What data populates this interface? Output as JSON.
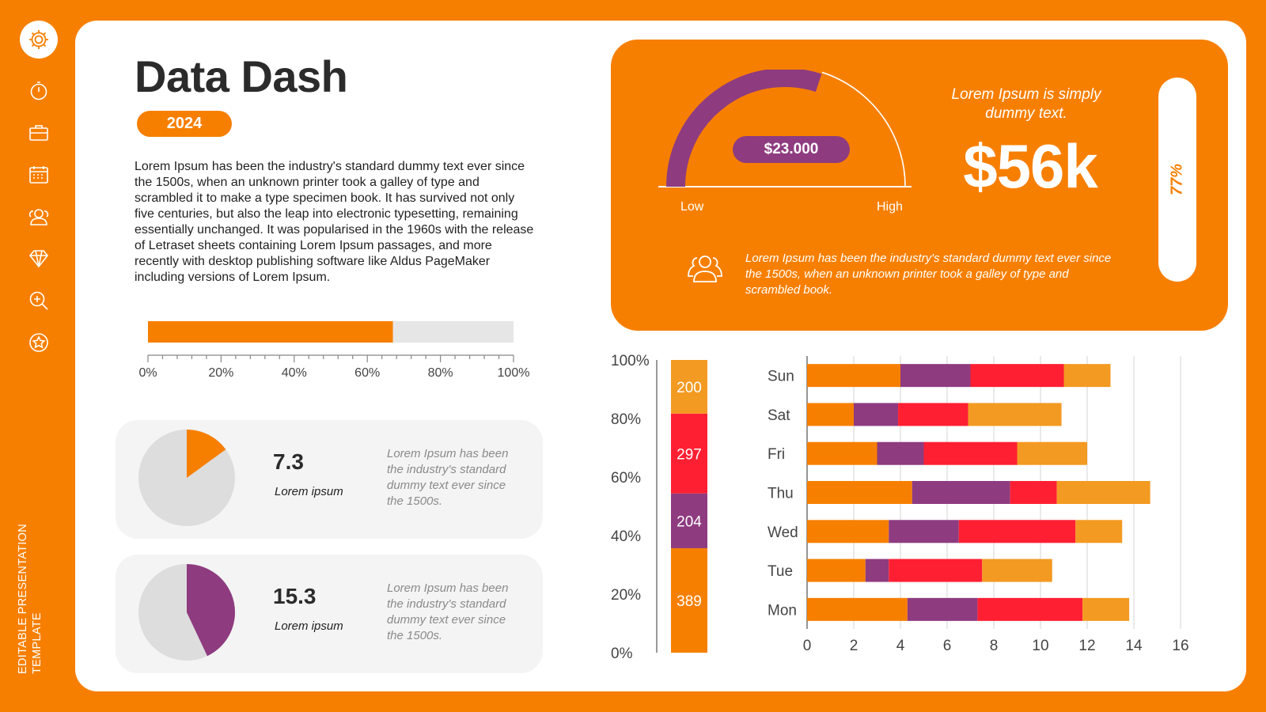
{
  "sidebar": {
    "icons": [
      "gear-icon",
      "stopwatch-icon",
      "briefcase-icon",
      "calendar-icon",
      "users-icon",
      "diamond-icon",
      "zoom-in-icon",
      "star-icon"
    ],
    "vertical_text": "Editable Presentation Template"
  },
  "header": {
    "title": "Data Dash",
    "year": "2024"
  },
  "intro": "Lorem Ipsum has been the industry's standard dummy text ever since the 1500s, when an unknown printer took a galley of type and scrambled it to make a type specimen book. It has survived not only five centuries, but also the leap into electronic typesetting, remaining essentially unchanged. It was popularised in the 1960s with the release of Letraset sheets containing Lorem Ipsum passages, and more recently with desktop publishing software like Aldus PageMaker including versions of Lorem Ipsum.",
  "progress": {
    "value_percent": 67,
    "ticks": [
      "0%",
      "20%",
      "40%",
      "60%",
      "80%",
      "100%"
    ],
    "fill": "#F77F00",
    "track": "#E6E6E6"
  },
  "kpi_cards": [
    {
      "value": "7.3",
      "label": "Lorem ipsum",
      "desc": "Lorem Ipsum has been the industry's standard dummy text ever since the 1500s.",
      "pie_fraction": 0.15,
      "color": "#F77F00"
    },
    {
      "value": "15.3",
      "label": "Lorem ipsum",
      "desc": "Lorem Ipsum has been the industry's standard dummy text ever since the 1500s.",
      "pie_fraction": 0.43,
      "color": "#8E3B80"
    }
  ],
  "highlight": {
    "gauge_value": "$23.000",
    "gauge_fraction": 0.6,
    "low": "Low",
    "high": "High",
    "subtitle": "Lorem Ipsum is simply dummy text.",
    "big": "$56k",
    "pill": "77%",
    "desc": "Lorem Ipsum has been the industry's standard dummy text ever since the 1500s, when an unknown printer took a galley of type and scrambled book."
  },
  "colors": {
    "orange": "#F77F00",
    "purple": "#8E3B80",
    "red": "#FF1F33",
    "light_orange": "#F39A22",
    "gray": "#DDDDDD"
  },
  "chart_data": [
    {
      "type": "bar",
      "stacked": true,
      "yticks": [
        "0%",
        "20%",
        "40%",
        "60%",
        "80%",
        "100%"
      ],
      "segments": [
        {
          "value": 389,
          "label": "389",
          "color": "#F77F00"
        },
        {
          "value": 204,
          "label": "204",
          "color": "#8E3B80"
        },
        {
          "value": 297,
          "label": "297",
          "color": "#FF1F33"
        },
        {
          "value": 200,
          "label": "200",
          "color": "#F39A22"
        }
      ]
    },
    {
      "type": "bar",
      "orientation": "horizontal",
      "stacked": true,
      "categories": [
        "Sun",
        "Sat",
        "Fri",
        "Thu",
        "Wed",
        "Tue",
        "Mon"
      ],
      "xlim": [
        0,
        16
      ],
      "xticks": [
        "0",
        "2",
        "4",
        "6",
        "8",
        "10",
        "12",
        "14",
        "16"
      ],
      "grid": true,
      "series": [
        {
          "color": "#F77F00",
          "values": [
            4.0,
            2.0,
            3.0,
            4.5,
            3.5,
            2.5,
            4.3
          ]
        },
        {
          "color": "#8E3B80",
          "values": [
            3.0,
            1.9,
            2.0,
            4.2,
            3.0,
            1.0,
            3.0
          ]
        },
        {
          "color": "#FF1F33",
          "values": [
            4.0,
            3.0,
            4.0,
            2.0,
            5.0,
            4.0,
            4.5
          ]
        },
        {
          "color": "#F39A22",
          "values": [
            2.0,
            4.0,
            3.0,
            4.0,
            2.0,
            3.0,
            2.0
          ]
        }
      ]
    }
  ]
}
